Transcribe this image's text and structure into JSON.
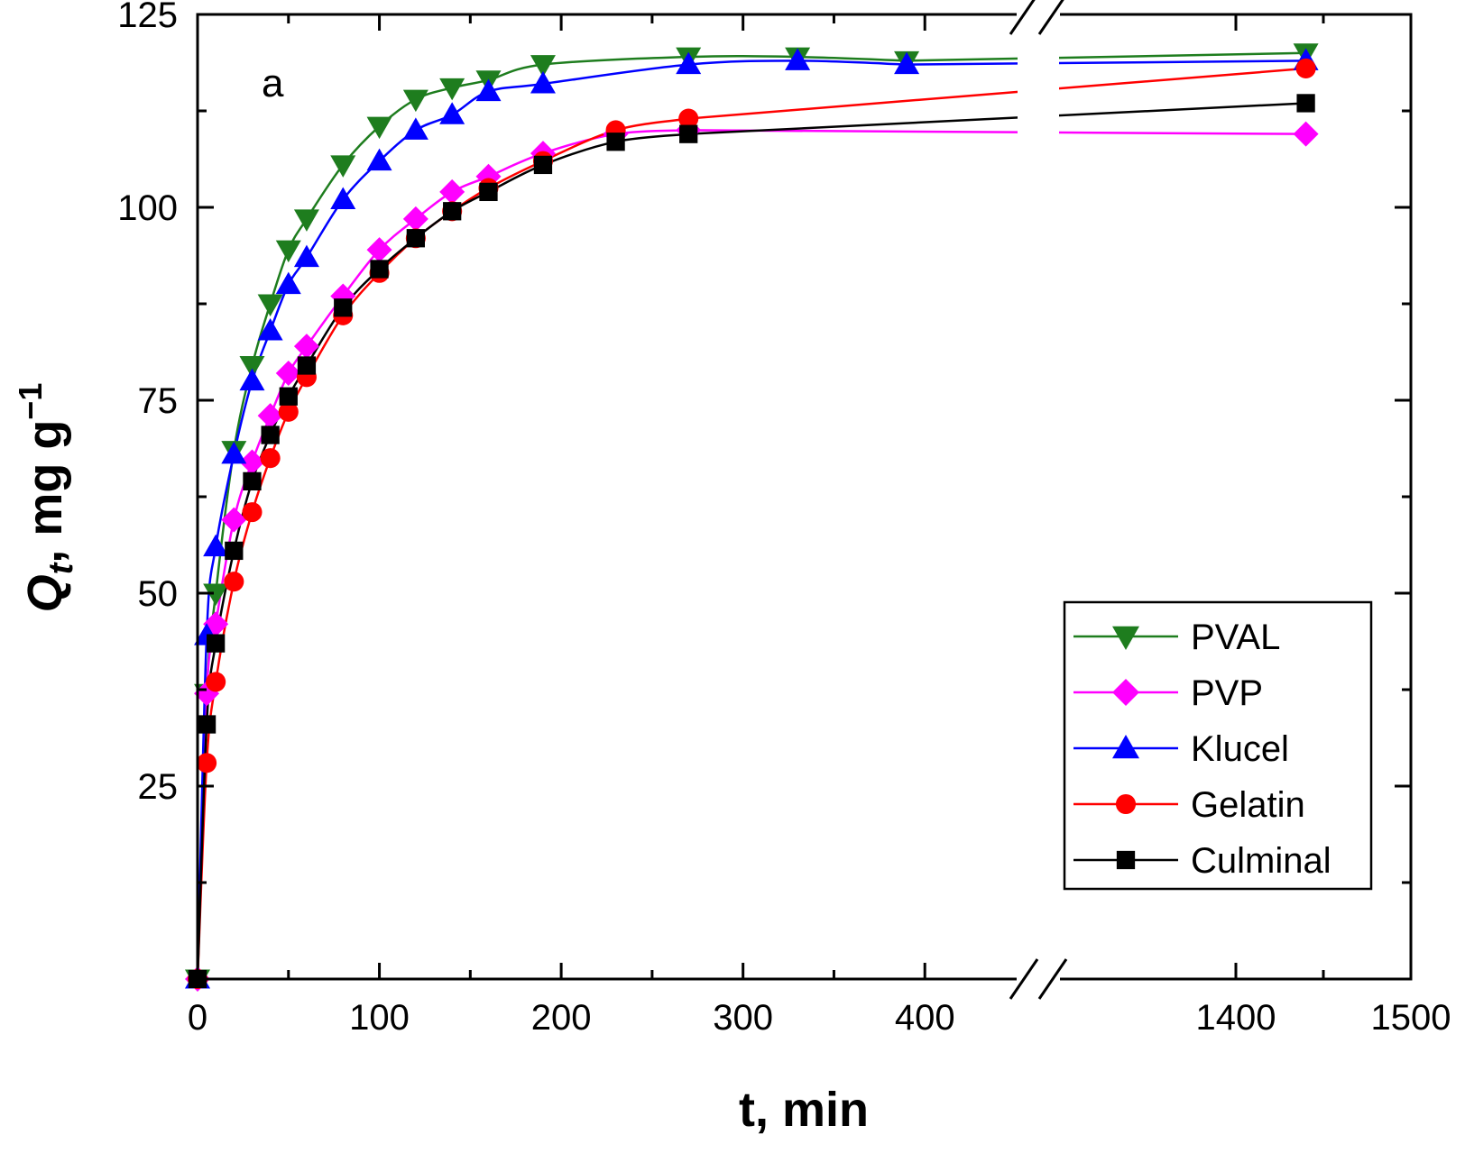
{
  "chart_data": {
    "type": "line",
    "panel_label": "a",
    "xlabel": "t, min",
    "ylabel": {
      "main": "Q",
      "sub": "t",
      "rest": ", mg g",
      "sup": "−1"
    },
    "x_break": {
      "from": 450,
      "to": 1300
    },
    "xlim": [
      0,
      1500
    ],
    "ylim": [
      0,
      125
    ],
    "x_ticks": [
      0,
      100,
      200,
      300,
      400,
      1400,
      1500
    ],
    "y_ticks": [
      25,
      50,
      75,
      100,
      125
    ],
    "legend_position": "bottom-right",
    "series": [
      {
        "name": "PVAL",
        "color": "#1e7d1e",
        "marker": "triangle-down",
        "x": [
          0,
          5,
          10,
          20,
          30,
          40,
          50,
          60,
          80,
          100,
          120,
          140,
          160,
          190,
          270,
          330,
          390,
          1440
        ],
        "y": [
          0,
          37,
          50,
          68.5,
          79.5,
          87.5,
          94.5,
          98.5,
          105.5,
          110.5,
          114,
          115.5,
          116.5,
          118.5,
          119.5,
          119.5,
          119,
          120
        ]
      },
      {
        "name": "PVP",
        "color": "#ff00ff",
        "marker": "diamond",
        "x": [
          0,
          5,
          10,
          20,
          30,
          40,
          50,
          60,
          80,
          100,
          120,
          140,
          160,
          190,
          230,
          270,
          1440
        ],
        "y": [
          0,
          37,
          46,
          59.5,
          67,
          73,
          78.5,
          82,
          88.5,
          94.5,
          98.5,
          102,
          104,
          107,
          109.5,
          110,
          109.5
        ]
      },
      {
        "name": "Klucel",
        "color": "#0000ff",
        "marker": "triangle-up",
        "x": [
          0,
          5,
          10,
          20,
          30,
          40,
          50,
          60,
          80,
          100,
          120,
          140,
          160,
          190,
          270,
          330,
          390,
          1440
        ],
        "y": [
          0,
          44.5,
          56,
          68,
          77.5,
          84,
          90,
          93.5,
          101,
          106,
          110,
          112,
          115,
          116,
          118.5,
          119,
          118.5,
          119
        ]
      },
      {
        "name": "Gelatin",
        "color": "#ff0000",
        "marker": "circle",
        "x": [
          0,
          5,
          10,
          20,
          30,
          40,
          50,
          60,
          80,
          100,
          120,
          140,
          160,
          190,
          230,
          270,
          1440
        ],
        "y": [
          0,
          28,
          38.5,
          51.5,
          60.5,
          67.5,
          73.5,
          78,
          86,
          91.5,
          96,
          99.5,
          102.5,
          106,
          110,
          111.5,
          118
        ]
      },
      {
        "name": "Culminal",
        "color": "#000000",
        "marker": "square",
        "x": [
          0,
          5,
          10,
          20,
          30,
          40,
          50,
          60,
          80,
          100,
          120,
          140,
          160,
          190,
          230,
          270,
          1440
        ],
        "y": [
          0,
          33,
          43.5,
          55.5,
          64.5,
          70.5,
          75.5,
          79.5,
          87,
          92,
          96,
          99.5,
          102,
          105.5,
          108.5,
          109.5,
          113.5
        ]
      }
    ]
  }
}
